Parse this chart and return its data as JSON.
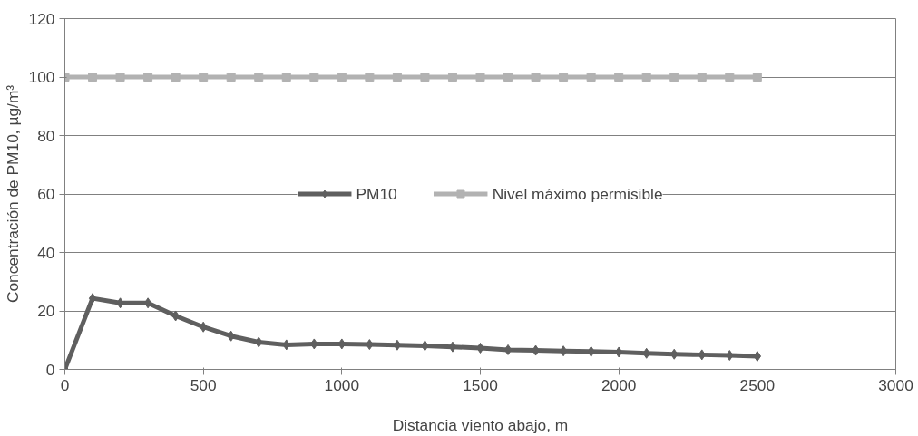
{
  "chart_data": {
    "type": "line",
    "xlabel": "Distancia viento abajo, m",
    "ylabel": "Concentración de PM10, µg/m³",
    "x": [
      0,
      100,
      200,
      300,
      400,
      500,
      600,
      700,
      800,
      900,
      1000,
      1100,
      1200,
      1300,
      1400,
      1500,
      1600,
      1700,
      1800,
      1900,
      2000,
      2100,
      2200,
      2300,
      2400,
      2500
    ],
    "series": [
      {
        "name": "PM10",
        "color": "#5f5f5f",
        "marker": "diamond",
        "values": [
          0,
          24.3,
          22.7,
          22.7,
          18.3,
          14.5,
          11.4,
          9.3,
          8.4,
          8.7,
          8.7,
          8.5,
          8.3,
          8.1,
          7.7,
          7.3,
          6.7,
          6.5,
          6.3,
          6.1,
          5.9,
          5.5,
          5.2,
          5.0,
          4.8,
          4.5
        ]
      },
      {
        "name": "Nivel máximo permisible",
        "color": "#b2b2b2",
        "marker": "square",
        "values": [
          100,
          100,
          100,
          100,
          100,
          100,
          100,
          100,
          100,
          100,
          100,
          100,
          100,
          100,
          100,
          100,
          100,
          100,
          100,
          100,
          100,
          100,
          100,
          100,
          100,
          100
        ]
      }
    ],
    "xlim": [
      0,
      3000
    ],
    "xticks": [
      0,
      500,
      1000,
      1500,
      2000,
      2500,
      3000
    ],
    "ylim": [
      0,
      120
    ],
    "yticks": [
      0,
      20,
      40,
      60,
      80,
      100,
      120
    ],
    "grid": "y",
    "legend": "center",
    "line_style": "solid"
  }
}
